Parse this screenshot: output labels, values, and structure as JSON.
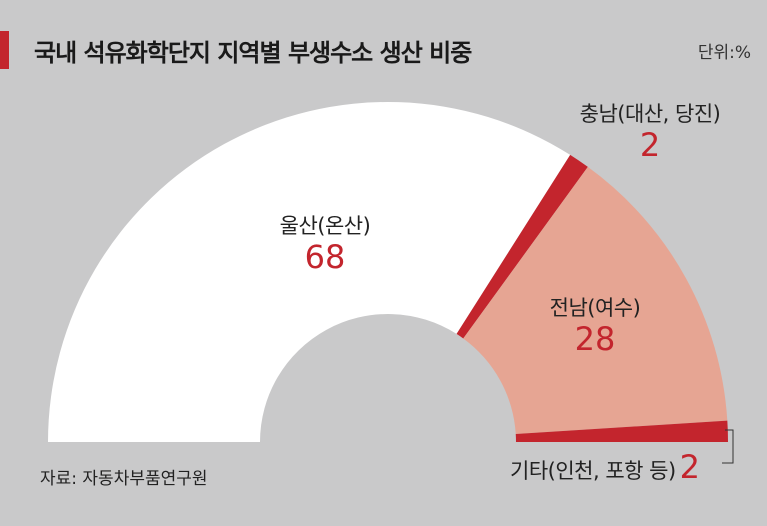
{
  "title": "국내 석유화학단지 지역별 부생수소 생산 비중",
  "unit": "단위:%",
  "source": "자료: 자동차부품연구원",
  "colors": {
    "background": "#c9c9ca",
    "accent": "#c3252d",
    "ulsan": "#ffffff",
    "chungnam": "#c3252d",
    "jeonnam": "#e6a593",
    "other": "#c3252d"
  },
  "chart_data": {
    "type": "pie",
    "variant": "semi-donut",
    "categories": [
      "울산(온산)",
      "충남(대산, 당진)",
      "전남(여수)",
      "기타(인천, 포항 등)"
    ],
    "values": [
      68,
      2,
      28,
      2
    ]
  }
}
